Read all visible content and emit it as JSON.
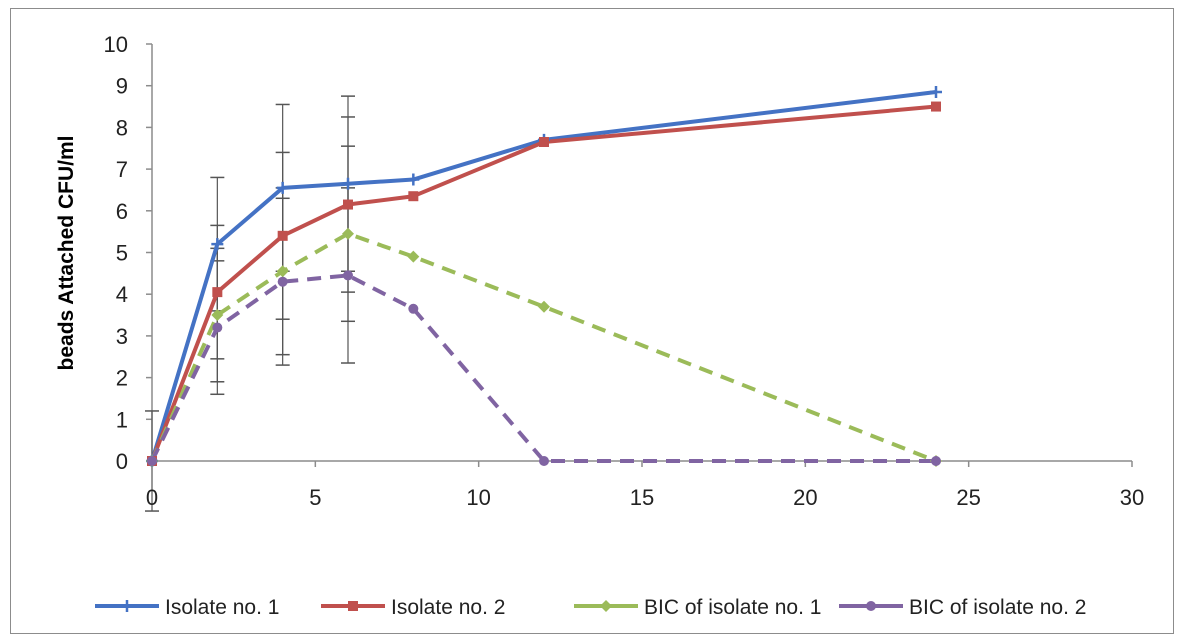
{
  "chart_data": {
    "type": "line",
    "title": "",
    "xlabel": "",
    "ylabel": "beads Attached CFU/ml",
    "xlim": [
      0,
      30
    ],
    "ylim": [
      0,
      10
    ],
    "xticks": [
      0,
      5,
      10,
      15,
      20,
      25,
      30
    ],
    "yticks": [
      0,
      1,
      2,
      3,
      4,
      5,
      6,
      7,
      8,
      9,
      10
    ],
    "grid": false,
    "legend_position": "bottom",
    "series": [
      {
        "name": "Isolate no. 1",
        "color": "#4472c4",
        "dashed": false,
        "marker": "plus",
        "x": [
          0,
          2,
          4,
          6,
          8,
          12,
          24
        ],
        "y": [
          0,
          5.2,
          6.55,
          6.65,
          6.75,
          7.7,
          8.85
        ],
        "err": [
          1.2,
          1.6,
          2.0,
          2.1,
          0,
          0,
          0
        ]
      },
      {
        "name": "Isolate no. 2",
        "color": "#c0504d",
        "dashed": false,
        "marker": "square",
        "x": [
          0,
          2,
          4,
          6,
          8,
          12,
          24
        ],
        "y": [
          0,
          4.05,
          5.4,
          6.15,
          6.35,
          7.65,
          8.5
        ],
        "err": [
          0,
          1.6,
          2.0,
          2.1,
          0,
          0,
          0
        ]
      },
      {
        "name": "BIC of isolate no. 1",
        "color": "#9bbb59",
        "dashed": true,
        "marker": "diamond",
        "x": [
          0,
          2,
          4,
          6,
          8,
          12,
          24
        ],
        "y": [
          0,
          3.5,
          4.55,
          5.45,
          4.9,
          3.7,
          0
        ],
        "err": [
          0,
          1.6,
          2.0,
          2.1,
          0,
          0,
          0
        ]
      },
      {
        "name": "BIC of isolate no. 2",
        "color": "#8064a2",
        "dashed": true,
        "marker": "circle",
        "x": [
          0,
          2,
          4,
          6,
          8,
          12,
          24
        ],
        "y": [
          0,
          3.2,
          4.3,
          4.45,
          3.65,
          0,
          0
        ],
        "err": [
          0,
          1.6,
          2.0,
          2.1,
          0,
          0,
          0
        ]
      }
    ]
  }
}
